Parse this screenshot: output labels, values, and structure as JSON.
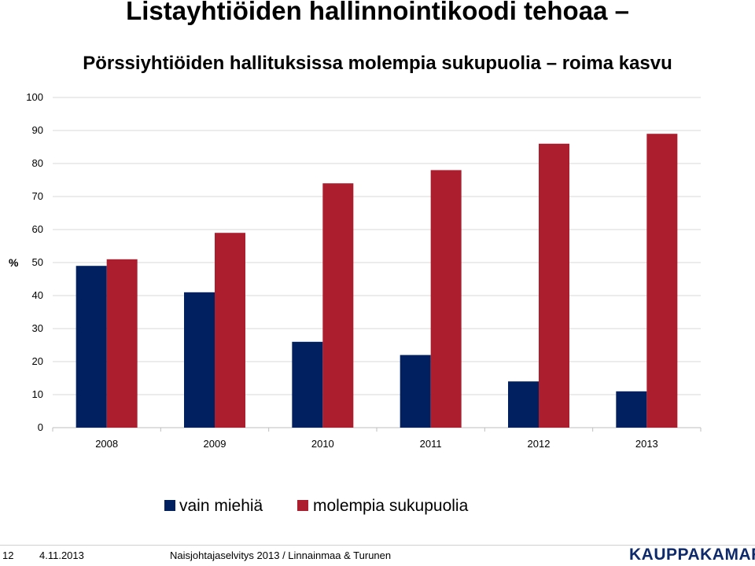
{
  "slide": {
    "title": "Listayhtiöiden hallinnointikoodi tehoaa –",
    "subtitle": "Pörssiyhtiöiden hallituksissa molempia sukupuolia – roima kasvu"
  },
  "chart_data": {
    "type": "bar",
    "categories": [
      "2008",
      "2009",
      "2010",
      "2011",
      "2012",
      "2013"
    ],
    "series": [
      {
        "name": "vain miehiä",
        "color": "#002060",
        "values": [
          49,
          41,
          26,
          22,
          14,
          11
        ]
      },
      {
        "name": "molempia sukupuolia",
        "color": "#ac1e2e",
        "values": [
          51,
          59,
          74,
          78,
          86,
          89
        ]
      }
    ],
    "ylabel": "%",
    "ylim": [
      0,
      100
    ],
    "yticks": [
      0,
      10,
      20,
      30,
      40,
      50,
      60,
      70,
      80,
      90,
      100
    ],
    "grid": true,
    "legend": "bottom"
  },
  "footer": {
    "page_number": "12",
    "date": "4.11.2013",
    "source": "Naisjohtajaselvitys 2013 / Linnainmaa & Turunen",
    "logo": "KAUPPAKAMARI"
  }
}
